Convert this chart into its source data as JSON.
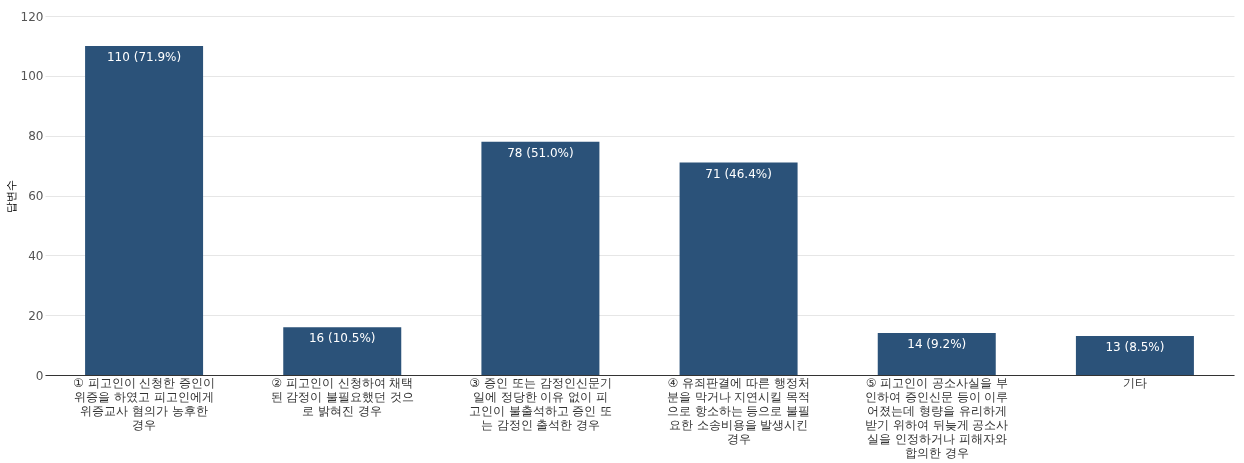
{
  "chart_data": {
    "type": "bar",
    "ylabel": "답변수",
    "categories": [
      "① 피고인이 신청한 증인이 위증을 하였고 피고인에게 위증교사 혐의가 농후한 경우",
      "② 피고인이 신청하여 채택된 감정이 불필요했던 것으로 밝혀진 경우",
      "③ 증인 또는 감정인신문기일에 정당한 이유 없이 피고인이 불출석하고 증인 또는 감정인 출석한 경우",
      "④ 유죄판결에 따른 행정처분을 막거나 지연시킬 목적으로 항소하는 등으로 불필요한 소송비용을 발생시킨 경우",
      "⑤ 피고인이 공소사실을 부인하여 증인신문 등이 이루어졌는데 형량을 유리하게 받기 위하여 뒤늦게 공소사실을 인정하거나 피해자와 합의한 경우",
      "기타"
    ],
    "values": [
      110,
      16,
      78,
      71,
      14,
      13
    ],
    "value_labels": [
      "110 (71.9%)",
      "16 (10.5%)",
      "78 (51.0%)",
      "71 (46.4%)",
      "14 (9.2%)",
      "13 (8.5%)"
    ],
    "color": "#2b5279",
    "ylim": [
      0,
      120
    ],
    "yticks": [
      0,
      20,
      40,
      60,
      80,
      100,
      120
    ],
    "grid": "y"
  }
}
